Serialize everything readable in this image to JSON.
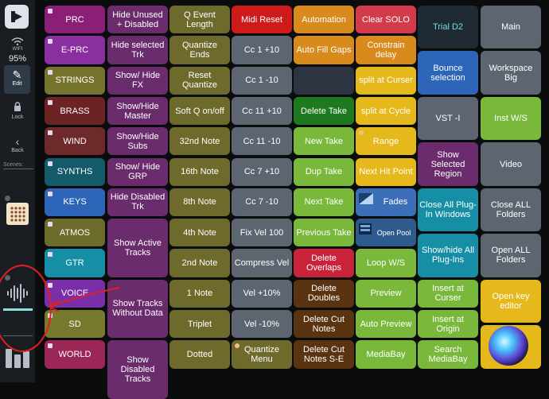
{
  "sidebar": {
    "wifi_label": "WIFI",
    "battery": "95%",
    "edit": "Edit",
    "lock": "Lock",
    "back": "Back",
    "scenes": "Scenes:"
  },
  "columns": [
    {
      "buttons": [
        {
          "label": "PRC",
          "color": "#8b1f78",
          "flag": "square"
        },
        {
          "label": "E-PRC",
          "color": "#8a2fa0",
          "flag": "square"
        },
        {
          "label": "STRINGS",
          "color": "#76732c",
          "flag": "square"
        },
        {
          "label": "BRASS",
          "color": "#6b2323",
          "flag": "square"
        },
        {
          "label": "WIND",
          "color": "#6e2a2a",
          "flag": "square"
        },
        {
          "label": "SYNTHS",
          "color": "#155a6b",
          "flag": "square"
        },
        {
          "label": "KEYS",
          "color": "#2d65b8",
          "flag": "square"
        },
        {
          "label": "ATMOS",
          "color": "#6c6c2b",
          "flag": "square"
        },
        {
          "label": "GTR",
          "color": "#168fa6",
          "flag": "square"
        },
        {
          "label": "VOICE",
          "color": "#7a2fa8",
          "flag": "square"
        },
        {
          "label": "SD",
          "color": "#77792f",
          "flag": "square"
        },
        {
          "label": "WORLD",
          "color": "#9b2756",
          "flag": "square"
        }
      ]
    },
    {
      "buttons": [
        {
          "label": "Hide Unused + Disabled",
          "color": "#6a2c6c"
        },
        {
          "label": "Hide selected Trk",
          "color": "#6a2c6c"
        },
        {
          "label": "Show/ Hide FX",
          "color": "#6a2c6c"
        },
        {
          "label": "Show/Hide Master",
          "color": "#6a2c6c"
        },
        {
          "label": "Show/Hide Subs",
          "color": "#6a2c6c"
        },
        {
          "label": "Show/ Hide GRP",
          "color": "#6a2c6c"
        },
        {
          "label": "Hide Disabled Trk",
          "color": "#6a2c6c"
        },
        {
          "label": "Show Active Tracks",
          "color": "#6a2c6c",
          "tall": 2
        },
        {
          "label": "Show Tracks Without Data",
          "color": "#6a2c6c",
          "tall": 2
        },
        {
          "label": "Show Disabled Tracks",
          "color": "#6a2c6c",
          "tall": 2
        }
      ]
    },
    {
      "buttons": [
        {
          "label": "Q Event Length",
          "color": "#6d6a2b"
        },
        {
          "label": "Quantize Ends",
          "color": "#6d6a2b"
        },
        {
          "label": "Reset Quantize",
          "color": "#6d6a2b"
        },
        {
          "label": "Soft Q on/off",
          "color": "#6d6a2b"
        },
        {
          "label": "32nd Note",
          "color": "#6d6a2b"
        },
        {
          "label": "16th Note",
          "color": "#6d6a2b"
        },
        {
          "label": "8th Note",
          "color": "#6d6a2b"
        },
        {
          "label": "4th Note",
          "color": "#6d6a2b"
        },
        {
          "label": "2nd Note",
          "color": "#6d6a2b"
        },
        {
          "label": "1 Note",
          "color": "#6d6a2b"
        },
        {
          "label": "Triplet",
          "color": "#6d6a2b"
        },
        {
          "label": "Dotted",
          "color": "#6d6a2b"
        }
      ]
    },
    {
      "buttons": [
        {
          "label": "Midi Reset",
          "color": "#cf1a1a"
        },
        {
          "label": "Cc 1 +10",
          "color": "#5d6670"
        },
        {
          "label": "Cc 1 -10",
          "color": "#5d6670"
        },
        {
          "label": "Cc 11 +10",
          "color": "#5d6670"
        },
        {
          "label": "Cc 11 -10",
          "color": "#5d6670"
        },
        {
          "label": "Cc 7 +10",
          "color": "#5d6670"
        },
        {
          "label": "Cc 7 -10",
          "color": "#5d6670"
        },
        {
          "label": "Fix Vel 100",
          "color": "#5d6670"
        },
        {
          "label": "Compress Vel",
          "color": "#5d6670"
        },
        {
          "label": "Vel +10%",
          "color": "#5d6670"
        },
        {
          "label": "Vel -10%",
          "color": "#5d6670"
        },
        {
          "label": "Quantize Menu",
          "color": "#6d6a2b",
          "flag": "round"
        }
      ]
    },
    {
      "buttons": [
        {
          "label": "Automation",
          "color": "#d98a1c"
        },
        {
          "label": "Auto Fill Gaps",
          "color": "#d98a1c"
        },
        {
          "label": "",
          "color": "#2b3440"
        },
        {
          "label": "Delete Take",
          "color": "#1f7a1f"
        },
        {
          "label": "New Take",
          "color": "#79b83a"
        },
        {
          "label": "Dup Take",
          "color": "#79b83a"
        },
        {
          "label": "Next Take",
          "color": "#79b83a"
        },
        {
          "label": "Previous Take",
          "color": "#79b83a"
        },
        {
          "label": "Delete Overlaps",
          "color": "#c9233a"
        },
        {
          "label": "Delete Doubles",
          "color": "#5a3410"
        },
        {
          "label": "Delete Cut Notes",
          "color": "#5a3410"
        },
        {
          "label": "Delete Cut Notes S-E",
          "color": "#5a3410"
        }
      ]
    },
    {
      "buttons": [
        {
          "label": "Clear SOLO",
          "color": "#d33a4a"
        },
        {
          "label": "Constrain delay",
          "color": "#d98a1c"
        },
        {
          "label": "split at Curser",
          "color": "#e5b81c"
        },
        {
          "label": "split at Cycle",
          "color": "#e5b81c"
        },
        {
          "label": "Range",
          "color": "#e5b81c",
          "flag": "round"
        },
        {
          "label": "Next Hit Point",
          "color": "#e5b81c"
        },
        {
          "label": "Fades",
          "color": "#3d6fb8",
          "icon": "fades"
        },
        {
          "label": "Open Pool",
          "color": "#2e5a8e",
          "icon": "pool"
        },
        {
          "label": "Loop W/S",
          "color": "#79b83a"
        },
        {
          "label": "Preview",
          "color": "#79b83a"
        },
        {
          "label": "Auto Preview",
          "color": "#79b83a"
        },
        {
          "label": "MediaBay",
          "color": "#79b83a"
        }
      ]
    },
    {
      "buttons": [
        {
          "label": "Trial D2",
          "color": "#1f2a35",
          "textcolor": "#6fe0e0",
          "tall": 1.5
        },
        {
          "label": "Bounce selection",
          "color": "#2d65b8",
          "tall": 1.5
        },
        {
          "label": "VST -I",
          "color": "#5d6670",
          "tall": 1.5
        },
        {
          "label": "Show Selected Region",
          "color": "#6a2c6c",
          "tall": 1.5
        },
        {
          "label": "Close All Plug-In Windows",
          "color": "#168fa6",
          "tall": 1.5
        },
        {
          "label": "Show/hide All Plug-Ins",
          "color": "#168fa6",
          "tall": 1.5
        },
        {
          "label": "Insert at Curser",
          "color": "#79b83a"
        },
        {
          "label": "Insert at Origin",
          "color": "#79b83a"
        },
        {
          "label": "Search MediaBay",
          "color": "#79b83a"
        }
      ]
    },
    {
      "buttons": [
        {
          "label": "Main",
          "color": "#5d6670",
          "tall": 1.5
        },
        {
          "label": "Workspace Big",
          "color": "#5d6670",
          "tall": 1.5
        },
        {
          "label": "Inst W/S",
          "color": "#79b83a",
          "tall": 1.5
        },
        {
          "label": "Video",
          "color": "#5d6670",
          "tall": 1.5
        },
        {
          "label": "Close ALL Folders",
          "color": "#5d6670",
          "tall": 1.5
        },
        {
          "label": "Open ALL Folders",
          "color": "#5d6670",
          "tall": 1.5
        },
        {
          "label": "Open key editor",
          "color": "#e5b81c",
          "tall": 1.5
        },
        {
          "label": "",
          "color": "#e5b81c",
          "tall": 1.5
        }
      ]
    }
  ]
}
